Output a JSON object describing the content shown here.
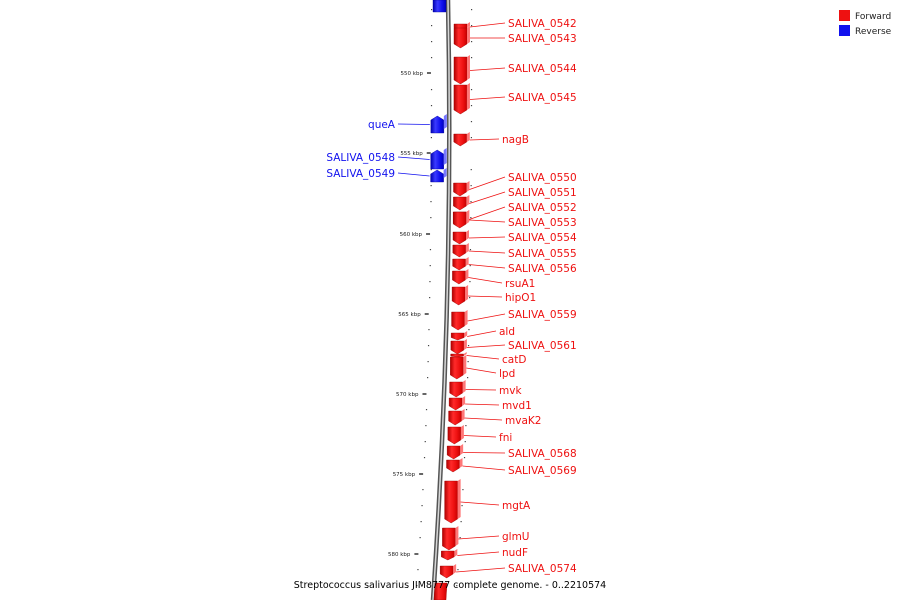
{
  "caption": "Streptococcus salivarius JIM8777 complete genome. - 0..2210574",
  "legend": [
    {
      "label": "Forward",
      "color": "#ee1111"
    },
    {
      "label": "Reverse",
      "color": "#1111ee"
    }
  ],
  "scale_ticks": [
    "550 kbp",
    "555 kbp",
    "560 kbp",
    "565 kbp",
    "570 kbp",
    "575 kbp",
    "580 kbp"
  ],
  "genes": [
    {
      "name": "SALIVA_0542",
      "strand": "forward"
    },
    {
      "name": "SALIVA_0543",
      "strand": "forward"
    },
    {
      "name": "SALIVA_0544",
      "strand": "forward"
    },
    {
      "name": "SALIVA_0545",
      "strand": "forward"
    },
    {
      "name": "queA",
      "strand": "reverse"
    },
    {
      "name": "nagB",
      "strand": "forward"
    },
    {
      "name": "SALIVA_0548",
      "strand": "reverse"
    },
    {
      "name": "SALIVA_0549",
      "strand": "reverse"
    },
    {
      "name": "SALIVA_0550",
      "strand": "forward"
    },
    {
      "name": "SALIVA_0551",
      "strand": "forward"
    },
    {
      "name": "SALIVA_0552",
      "strand": "forward"
    },
    {
      "name": "SALIVA_0553",
      "strand": "forward"
    },
    {
      "name": "SALIVA_0554",
      "strand": "forward"
    },
    {
      "name": "SALIVA_0555",
      "strand": "forward"
    },
    {
      "name": "SALIVA_0556",
      "strand": "forward"
    },
    {
      "name": "rsuA1",
      "strand": "forward"
    },
    {
      "name": "hipO1",
      "strand": "forward"
    },
    {
      "name": "SALIVA_0559",
      "strand": "forward"
    },
    {
      "name": "ald",
      "strand": "forward"
    },
    {
      "name": "SALIVA_0561",
      "strand": "forward"
    },
    {
      "name": "catD",
      "strand": "forward"
    },
    {
      "name": "lpd",
      "strand": "forward"
    },
    {
      "name": "mvk",
      "strand": "forward"
    },
    {
      "name": "mvd1",
      "strand": "forward"
    },
    {
      "name": "mvaK2",
      "strand": "forward"
    },
    {
      "name": "fni",
      "strand": "forward"
    },
    {
      "name": "SALIVA_0568",
      "strand": "forward"
    },
    {
      "name": "SALIVA_0569",
      "strand": "forward"
    },
    {
      "name": "mgtA",
      "strand": "forward"
    },
    {
      "name": "glmU",
      "strand": "forward"
    },
    {
      "name": "nudF",
      "strand": "forward"
    },
    {
      "name": "SALIVA_0574",
      "strand": "forward"
    }
  ]
}
